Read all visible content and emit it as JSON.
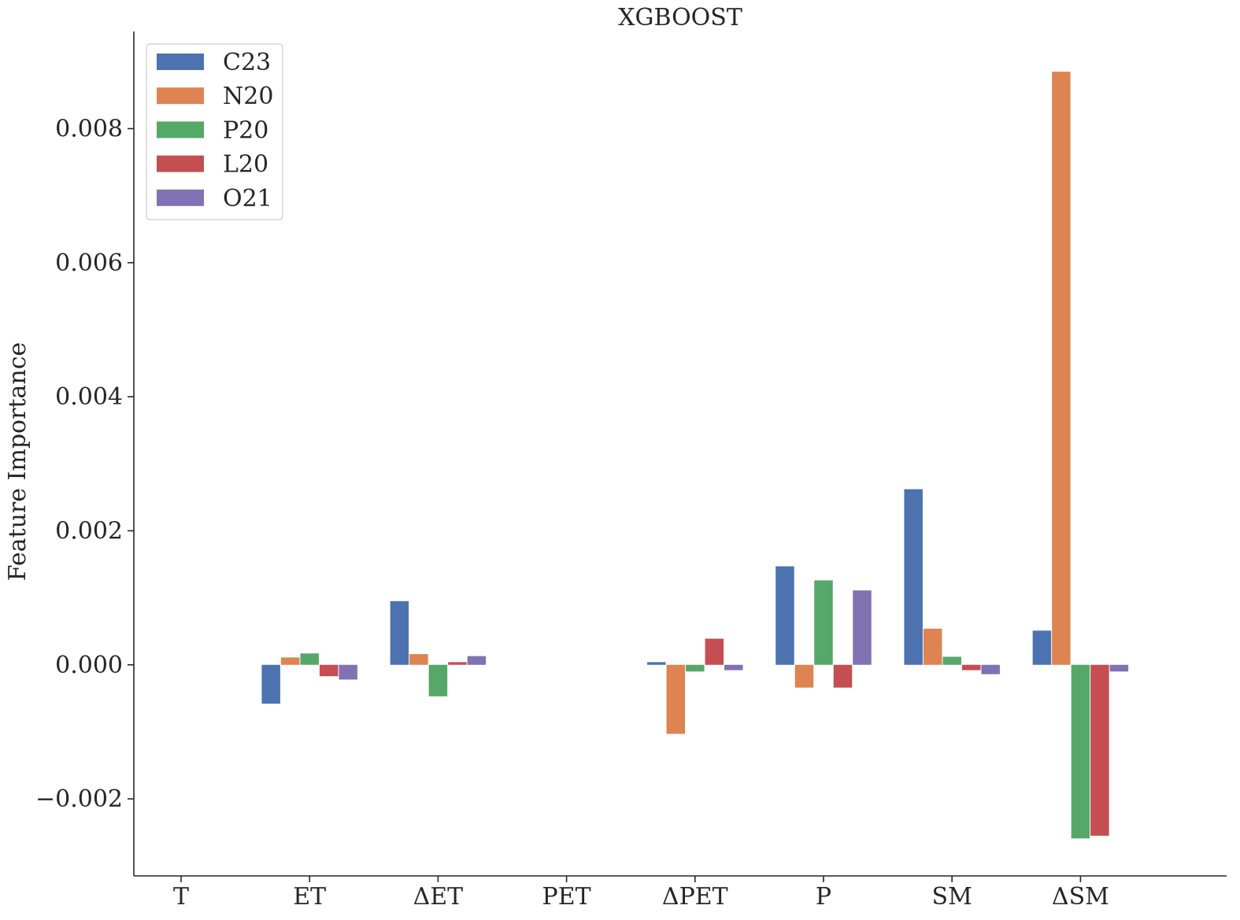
{
  "chart_data": {
    "type": "bar",
    "title": "XGBOOST",
    "xlabel": "",
    "ylabel": "Feature Importance",
    "categories": [
      "T",
      "ET",
      "ΔET",
      "PET",
      "ΔPET",
      "P",
      "SM",
      "ΔSM"
    ],
    "series": [
      {
        "name": "C23",
        "color": "#4C72B0",
        "values": [
          0,
          -0.00058,
          0.00095,
          0,
          4e-05,
          0.00147,
          0.00262,
          0.00051
        ]
      },
      {
        "name": "N20",
        "color": "#DD8452",
        "values": [
          0,
          0.00011,
          0.00016,
          0,
          -0.00103,
          -0.00034,
          0.00054,
          0.00885
        ]
      },
      {
        "name": "P20",
        "color": "#55A868",
        "values": [
          0,
          0.00017,
          -0.00047,
          0,
          -0.0001,
          0.00126,
          0.00012,
          -0.00259
        ]
      },
      {
        "name": "L20",
        "color": "#C44E52",
        "values": [
          0,
          -0.00017,
          4e-05,
          0,
          0.00039,
          -0.00034,
          -8e-05,
          -0.00255
        ]
      },
      {
        "name": "O21",
        "color": "#8172B3",
        "values": [
          0,
          -0.00022,
          0.00013,
          0,
          -8e-05,
          0.00111,
          -0.00014,
          -0.0001
        ]
      }
    ],
    "yticks": [
      -0.002,
      0.0,
      0.002,
      0.004,
      0.006,
      0.008
    ],
    "ytick_labels": [
      "−0.002",
      "0.000",
      "0.002",
      "0.004",
      "0.006",
      "0.008"
    ],
    "ylim": [
      -0.00315,
      0.00945
    ],
    "grid": false,
    "legend_position": "upper-left"
  }
}
